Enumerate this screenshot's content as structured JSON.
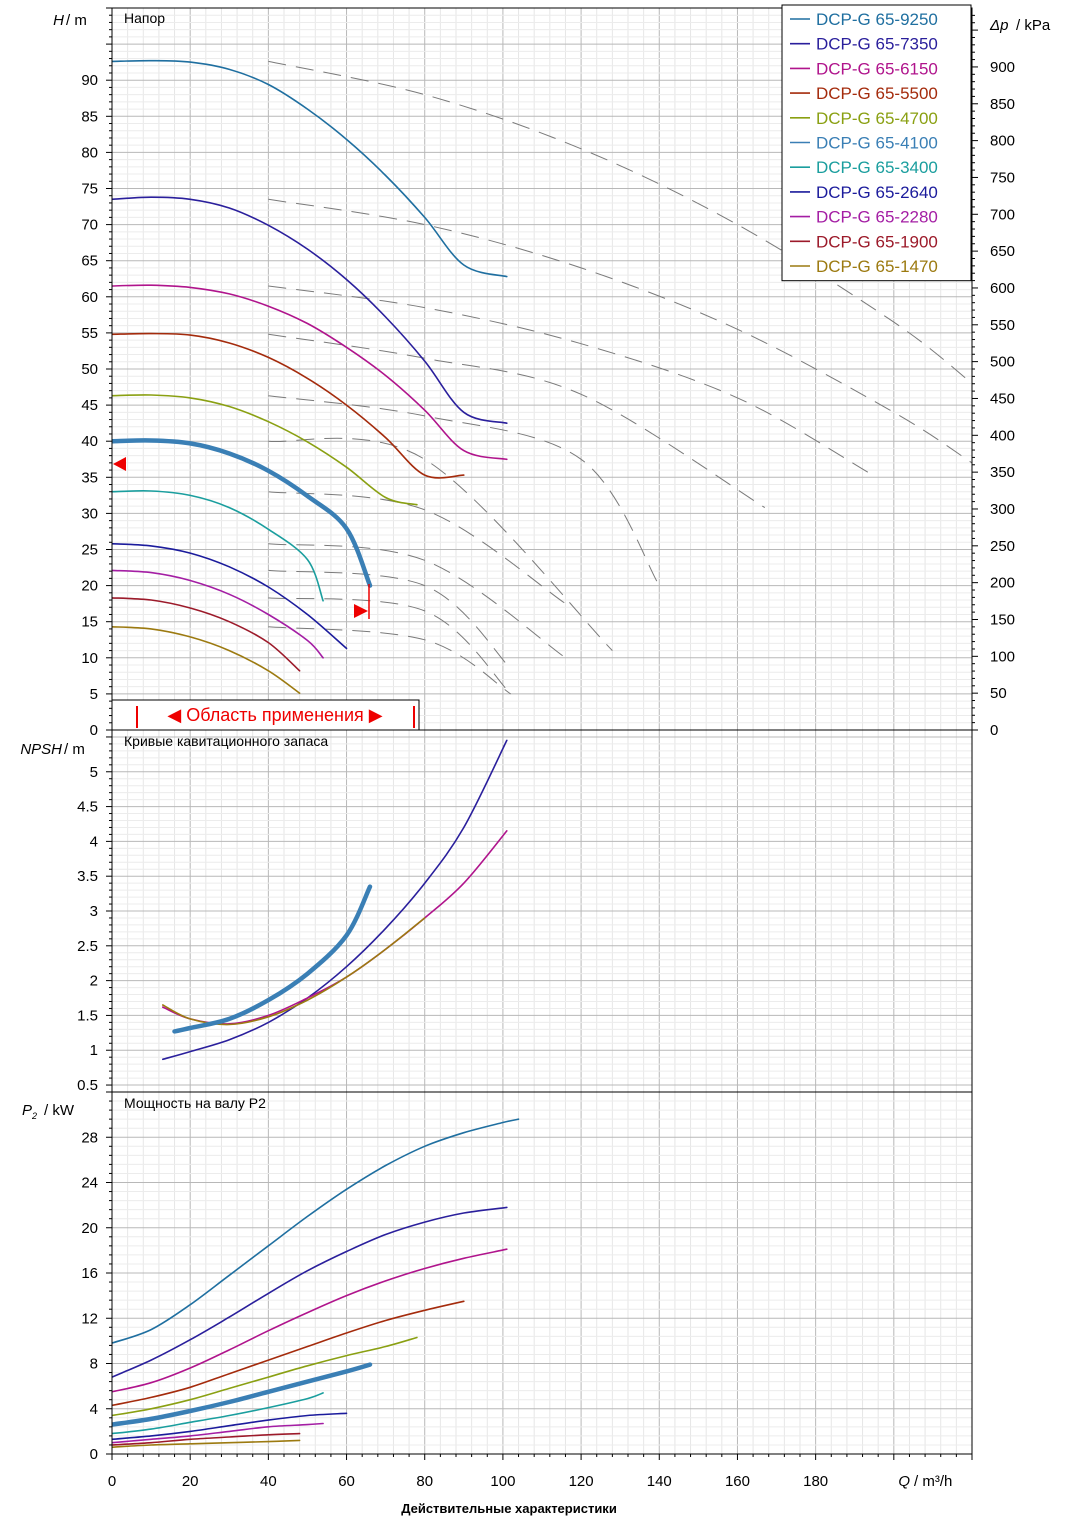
{
  "footer": "Действительные характеристики",
  "x_axis": {
    "var": "Q",
    "unit": "/ m³/h",
    "ticks": [
      0,
      20,
      40,
      60,
      80,
      100,
      120,
      140,
      160,
      180
    ],
    "range": [
      0,
      220
    ]
  },
  "app_range_label": "◀ Область применения ▶",
  "chart_data": [
    {
      "type": "line",
      "title": "Напор",
      "ylabel_var": "H",
      "ylabel_unit": "/ m",
      "ylim": [
        0,
        100
      ],
      "yticks": [
        0,
        5,
        10,
        15,
        20,
        25,
        30,
        35,
        40,
        45,
        50,
        55,
        60,
        65,
        70,
        75,
        80,
        85,
        90
      ],
      "y2label_var": "Δp",
      "y2label_unit": "/ kPa",
      "y2lim": [
        0,
        980
      ],
      "y2ticks": [
        0,
        50,
        100,
        150,
        200,
        250,
        300,
        350,
        400,
        450,
        500,
        550,
        600,
        650,
        700,
        750,
        800,
        850,
        900
      ],
      "legend_position": "top-right",
      "series": [
        {
          "name": "DCP-G 65-9250",
          "color": "#1f6fa0",
          "x": [
            0,
            10,
            20,
            30,
            40,
            50,
            60,
            70,
            80,
            90,
            101
          ],
          "y": [
            92.6,
            92.7,
            92.5,
            91.5,
            89.4,
            86.0,
            81.8,
            76.8,
            71.0,
            64.4,
            62.8
          ]
        },
        {
          "name": "DCP-G 65-7350",
          "color": "#2a1f9c",
          "x": [
            0,
            10,
            20,
            30,
            40,
            50,
            60,
            70,
            80,
            90,
            101
          ],
          "y": [
            73.5,
            73.8,
            73.5,
            72.3,
            69.9,
            66.6,
            62.4,
            57.2,
            51.1,
            44.0,
            42.5
          ]
        },
        {
          "name": "DCP-G 65-6150",
          "color": "#b0148c",
          "x": [
            0,
            10,
            20,
            30,
            40,
            50,
            60,
            70,
            80,
            90,
            101
          ],
          "y": [
            61.5,
            61.6,
            61.3,
            60.4,
            58.7,
            56.3,
            53.0,
            49.1,
            44.3,
            38.7,
            37.5
          ]
        },
        {
          "name": "DCP-G 65-5500",
          "color": "#a42b0c",
          "x": [
            0,
            10,
            20,
            30,
            40,
            50,
            60,
            70,
            80,
            90
          ],
          "y": [
            54.8,
            54.9,
            54.7,
            53.6,
            51.6,
            48.7,
            45.0,
            40.5,
            35.3,
            35.3
          ]
        },
        {
          "name": "DCP-G 65-4700",
          "color": "#8aa012",
          "x": [
            0,
            10,
            20,
            30,
            40,
            50,
            60,
            70,
            78
          ],
          "y": [
            46.3,
            46.4,
            46.0,
            44.8,
            42.7,
            39.9,
            36.4,
            32.2,
            31.2
          ]
        },
        {
          "name": "DCP-G 65-4100",
          "color": "#3a7fb5",
          "x": [
            0,
            10,
            20,
            30,
            40,
            50,
            60,
            66
          ],
          "y": [
            40.0,
            40.1,
            39.7,
            38.3,
            35.9,
            32.4,
            27.9,
            20.0
          ],
          "bold": true
        },
        {
          "name": "DCP-G 65-3400",
          "color": "#1a9e9e",
          "x": [
            0,
            10,
            20,
            30,
            40,
            50,
            54
          ],
          "y": [
            33.0,
            33.1,
            32.5,
            30.8,
            27.8,
            23.6,
            17.9
          ]
        },
        {
          "name": "DCP-G 65-2640",
          "color": "#1b1b9c",
          "x": [
            0,
            10,
            20,
            30,
            40,
            50,
            60
          ],
          "y": [
            25.8,
            25.5,
            24.5,
            22.6,
            19.8,
            16.0,
            11.3
          ]
        },
        {
          "name": "DCP-G 65-2280",
          "color": "#a41ea4",
          "x": [
            0,
            10,
            20,
            30,
            40,
            50,
            54
          ],
          "y": [
            22.1,
            21.8,
            20.7,
            18.8,
            16.0,
            12.4,
            10.0
          ]
        },
        {
          "name": "DCP-G 65-1900",
          "color": "#9c1a2a",
          "x": [
            0,
            10,
            20,
            30,
            40,
            48
          ],
          "y": [
            18.3,
            18.0,
            16.9,
            15.0,
            12.1,
            8.2
          ]
        },
        {
          "name": "DCP-G 65-1470",
          "color": "#9c7a10",
          "x": [
            0,
            10,
            20,
            30,
            40,
            48
          ],
          "y": [
            14.3,
            14.0,
            12.9,
            11.0,
            8.2,
            5.1
          ]
        }
      ],
      "system_curves": [
        {
          "x": [
            40,
            80,
            120,
            160,
            200,
            220
          ],
          "y": [
            92.6,
            88.0,
            80.5,
            70.0,
            56.5,
            48.0
          ]
        },
        {
          "x": [
            40,
            80,
            120,
            160,
            200,
            220
          ],
          "y": [
            73.5,
            70.0,
            64.0,
            55.5,
            44.0,
            37.0
          ]
        },
        {
          "x": [
            40,
            80,
            120,
            160,
            194
          ],
          "y": [
            61.5,
            58.5,
            53.5,
            46.0,
            35.5
          ]
        },
        {
          "x": [
            40,
            80,
            120,
            167
          ],
          "y": [
            54.8,
            51.5,
            46.5,
            30.8
          ]
        },
        {
          "x": [
            40,
            80,
            120,
            140
          ],
          "y": [
            46.3,
            43.5,
            37.5,
            20.0
          ]
        },
        {
          "x": [
            40,
            80,
            128
          ],
          "y": [
            40.0,
            37.5,
            11.0
          ]
        },
        {
          "x": [
            40,
            80,
            116
          ],
          "y": [
            33.0,
            30.5,
            17.5
          ]
        },
        {
          "x": [
            40,
            80,
            116
          ],
          "y": [
            25.8,
            23.5,
            10.0
          ]
        },
        {
          "x": [
            40,
            80,
            102
          ],
          "y": [
            22.1,
            20.0,
            8.5
          ]
        },
        {
          "x": [
            40,
            80,
            102
          ],
          "y": [
            18.3,
            16.5,
            5.0
          ]
        },
        {
          "x": [
            40,
            80,
            102
          ],
          "y": [
            14.3,
            12.5,
            5.0
          ]
        }
      ]
    },
    {
      "type": "line",
      "title": "Кривые кавитационного запаса",
      "ylabel_var": "NPSH",
      "ylabel_unit": "/ m",
      "ylim": [
        0.4,
        5.6
      ],
      "yticks": [
        0.5,
        1,
        1.5,
        2,
        2.5,
        3,
        3.5,
        4,
        4.5,
        5
      ],
      "series": [
        {
          "color": "#2a1f9c",
          "x": [
            13,
            20,
            30,
            40,
            50,
            60,
            70,
            80,
            90,
            101
          ],
          "y": [
            0.87,
            0.98,
            1.15,
            1.4,
            1.75,
            2.2,
            2.75,
            3.4,
            4.2,
            5.45
          ]
        },
        {
          "color": "#b0148c",
          "x": [
            13,
            20,
            30,
            40,
            50,
            60,
            70,
            80,
            90,
            101
          ],
          "y": [
            1.62,
            1.45,
            1.38,
            1.5,
            1.75,
            2.05,
            2.45,
            2.9,
            3.4,
            4.15
          ]
        },
        {
          "color": "#9c7a10",
          "x": [
            13,
            20,
            30,
            40,
            50,
            60,
            70,
            80
          ],
          "y": [
            1.65,
            1.45,
            1.37,
            1.48,
            1.72,
            2.05,
            2.45,
            2.9
          ]
        },
        {
          "color": "#3a7fb5",
          "x": [
            16,
            20,
            30,
            40,
            50,
            60,
            66
          ],
          "y": [
            1.27,
            1.32,
            1.45,
            1.72,
            2.1,
            2.65,
            3.35
          ],
          "bold": true
        }
      ]
    },
    {
      "type": "line",
      "title": "Мощность на валу P2",
      "ylabel_var": "P",
      "ylabel_sub": "2",
      "ylabel_unit": "/ kW",
      "ylim": [
        0,
        32
      ],
      "yticks": [
        0,
        4,
        8,
        12,
        16,
        20,
        24,
        28
      ],
      "series": [
        {
          "color": "#1f6fa0",
          "x": [
            0,
            10,
            20,
            30,
            40,
            50,
            60,
            70,
            80,
            90,
            100,
            104
          ],
          "y": [
            9.8,
            11.0,
            13.2,
            15.8,
            18.4,
            21.0,
            23.4,
            25.5,
            27.2,
            28.4,
            29.3,
            29.6
          ]
        },
        {
          "color": "#2a1f9c",
          "x": [
            0,
            10,
            20,
            30,
            40,
            50,
            60,
            70,
            80,
            90,
            101
          ],
          "y": [
            6.8,
            8.3,
            10.1,
            12.1,
            14.2,
            16.2,
            17.9,
            19.4,
            20.5,
            21.3,
            21.8
          ]
        },
        {
          "color": "#b0148c",
          "x": [
            0,
            10,
            20,
            30,
            40,
            50,
            60,
            70,
            80,
            90,
            101
          ],
          "y": [
            5.5,
            6.3,
            7.6,
            9.2,
            10.9,
            12.5,
            14.0,
            15.3,
            16.4,
            17.3,
            18.1
          ]
        },
        {
          "color": "#a42b0c",
          "x": [
            0,
            10,
            20,
            30,
            40,
            50,
            60,
            70,
            80,
            90
          ],
          "y": [
            4.3,
            5.0,
            5.9,
            7.1,
            8.3,
            9.5,
            10.7,
            11.8,
            12.7,
            13.5
          ]
        },
        {
          "color": "#8aa012",
          "x": [
            0,
            10,
            20,
            30,
            40,
            50,
            60,
            70,
            78
          ],
          "y": [
            3.4,
            4.0,
            4.8,
            5.8,
            6.8,
            7.8,
            8.7,
            9.5,
            10.3
          ]
        },
        {
          "color": "#3a7fb5",
          "x": [
            0,
            10,
            20,
            30,
            40,
            50,
            60,
            66
          ],
          "y": [
            2.6,
            3.1,
            3.8,
            4.6,
            5.5,
            6.4,
            7.3,
            7.9
          ],
          "bold": true
        },
        {
          "color": "#1a9e9e",
          "x": [
            0,
            10,
            20,
            30,
            40,
            50,
            54
          ],
          "y": [
            1.8,
            2.2,
            2.8,
            3.4,
            4.1,
            4.9,
            5.4
          ]
        },
        {
          "color": "#1b1b9c",
          "x": [
            0,
            10,
            20,
            30,
            40,
            50,
            60
          ],
          "y": [
            1.3,
            1.6,
            2.0,
            2.5,
            3.0,
            3.4,
            3.6
          ]
        },
        {
          "color": "#a41ea4",
          "x": [
            0,
            10,
            20,
            30,
            40,
            50,
            54
          ],
          "y": [
            1.0,
            1.3,
            1.6,
            2.0,
            2.4,
            2.6,
            2.7
          ]
        },
        {
          "color": "#9c1a2a",
          "x": [
            0,
            10,
            20,
            30,
            40,
            48
          ],
          "y": [
            0.8,
            1.0,
            1.3,
            1.5,
            1.7,
            1.8
          ]
        },
        {
          "color": "#9c7a10",
          "x": [
            0,
            10,
            20,
            30,
            40,
            48
          ],
          "y": [
            0.6,
            0.8,
            0.9,
            1.0,
            1.1,
            1.2
          ]
        }
      ]
    }
  ]
}
